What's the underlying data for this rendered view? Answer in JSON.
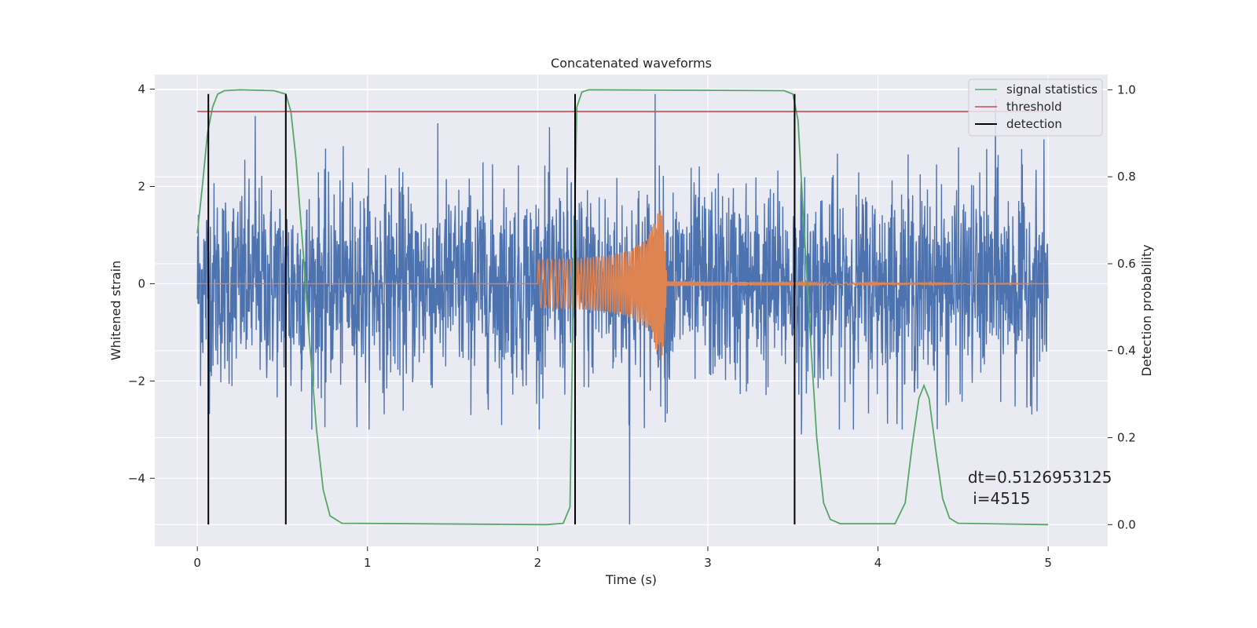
{
  "chart_data": {
    "type": "line",
    "title": "Concatenated waveforms",
    "xlabel": "Time (s)",
    "ylabel_left": "Whitened strain",
    "ylabel_right": "Detection probability",
    "xlim": [
      -0.25,
      5.35
    ],
    "ylim_left": [
      -5.4,
      4.3
    ],
    "ylim_right": [
      -0.05,
      1.035
    ],
    "x_ticks": [
      0,
      1,
      2,
      3,
      4,
      5
    ],
    "y_left_ticks": [
      -4,
      -2,
      0,
      2,
      4
    ],
    "y_right_ticks": [
      0.0,
      0.2,
      0.4,
      0.6,
      0.8,
      1.0
    ],
    "grid": true,
    "legend_position": "top-right",
    "colors": {
      "background": "#eaeaf2",
      "grid": "#ffffff",
      "strain": "#4c72b0",
      "waveform": "#dd8452",
      "signal_statistics": "#55a868",
      "threshold": "#c44e52",
      "detection": "#000000"
    },
    "series": [
      {
        "name": "",
        "axis": "left",
        "kind": "noisy_strain",
        "x_range": [
          0,
          5
        ],
        "typical_amplitude": 1.2,
        "outliers": [
          {
            "x": 0.34,
            "y": 3.45
          },
          {
            "x": 2.54,
            "y": -4.95
          },
          {
            "x": 2.69,
            "y": 3.9
          },
          {
            "x": 3.55,
            "y": -3.1
          },
          {
            "x": 4.69,
            "y": 3.8
          },
          {
            "x": 0.55,
            "y": -2.1
          },
          {
            "x": 0.75,
            "y": -2.95
          },
          {
            "x": 2.75,
            "y": -2.85
          },
          {
            "x": 4.4,
            "y": -2.5
          }
        ]
      },
      {
        "name": "",
        "axis": "left",
        "kind": "chirp_waveform",
        "x": [
          0,
          2.0,
          2.0,
          2.2,
          2.4,
          2.55,
          2.65,
          2.72,
          2.74,
          2.76,
          5.0
        ],
        "envelope": [
          0,
          0,
          0.5,
          0.52,
          0.58,
          0.7,
          0.95,
          1.6,
          1.4,
          0.05,
          0
        ]
      },
      {
        "name": "signal statistics",
        "axis": "right",
        "x": [
          0.0,
          0.03,
          0.06,
          0.09,
          0.12,
          0.16,
          0.25,
          0.45,
          0.52,
          0.55,
          0.58,
          0.62,
          0.66,
          0.7,
          0.74,
          0.78,
          0.85,
          2.05,
          2.15,
          2.19,
          2.21,
          2.23,
          2.26,
          2.3,
          3.45,
          3.5,
          3.53,
          3.56,
          3.6,
          3.64,
          3.68,
          3.72,
          3.78,
          4.1,
          4.16,
          4.2,
          4.24,
          4.27,
          4.3,
          4.34,
          4.38,
          4.42,
          4.47,
          5.0
        ],
        "values": [
          0.67,
          0.78,
          0.9,
          0.96,
          0.99,
          0.998,
          1.0,
          0.998,
          0.99,
          0.95,
          0.84,
          0.64,
          0.42,
          0.22,
          0.08,
          0.02,
          0.003,
          0.0,
          0.003,
          0.04,
          0.55,
          0.96,
          0.995,
          1.0,
          0.998,
          0.99,
          0.93,
          0.72,
          0.45,
          0.2,
          0.05,
          0.012,
          0.002,
          0.002,
          0.05,
          0.18,
          0.29,
          0.32,
          0.29,
          0.17,
          0.06,
          0.015,
          0.003,
          0.0
        ]
      },
      {
        "name": "threshold",
        "axis": "right",
        "x": [
          0,
          5
        ],
        "values": [
          0.95,
          0.95
        ]
      },
      {
        "name": "detection",
        "axis": "vertical_lines",
        "x": [
          0.065,
          0.52,
          2.22,
          3.51
        ],
        "y_range_left": [
          -4.95,
          3.9
        ]
      }
    ],
    "annotations": [
      {
        "text": "dt=0.5126953125",
        "x": 4.5,
        "y_right": 0.1
      },
      {
        "text": " i=4515",
        "x": 4.5,
        "y_right": 0.05
      }
    ]
  }
}
